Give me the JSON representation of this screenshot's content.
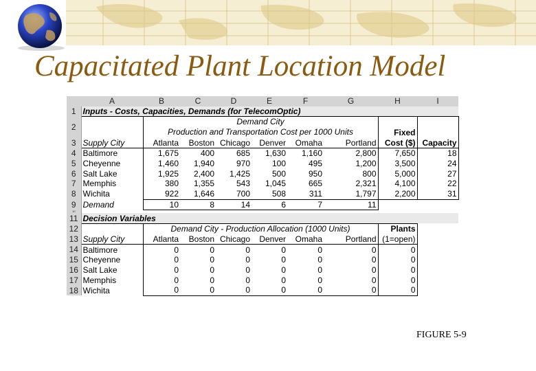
{
  "slide": {
    "title": "Capacitated Plant Location Model",
    "figure_label": "FIGURE 5-9"
  },
  "colors": {
    "title": "#8a5a10",
    "banner": "#f3e9c8",
    "banner_lines": "#dcc98c"
  },
  "sheet": {
    "columns": [
      "A",
      "B",
      "C",
      "D",
      "E",
      "F",
      "G",
      "H",
      "I"
    ],
    "row_numbers": [
      "1",
      "2",
      "3",
      "4",
      "5",
      "6",
      "7",
      "8",
      "9",
      "10",
      "11",
      "12",
      "13",
      "14",
      "15",
      "16",
      "17",
      "18"
    ],
    "inputs_title": "Inputs - Costs, Capacities, Demands (for TelecomOptic)",
    "demand_city": "Demand City",
    "prod_cost_label": "Production and Transportation Cost per 1000 Units",
    "fixed_label": "Fixed",
    "fixed_cost_label": "Cost ($)",
    "capacity_label": "Capacity",
    "supply_city_label": "Supply City",
    "demand_cities": [
      "Atlanta",
      "Boston",
      "Chicago",
      "Denver",
      "Omaha",
      "Portland"
    ],
    "cost_rows": [
      {
        "city": "Baltimore",
        "costs": [
          "1,675",
          "400",
          "685",
          "1,630",
          "1,160",
          "2,800"
        ],
        "fixed": "7,650",
        "capacity": "18"
      },
      {
        "city": "Cheyenne",
        "costs": [
          "1,460",
          "1,940",
          "970",
          "100",
          "495",
          "1,200"
        ],
        "fixed": "3,500",
        "capacity": "24"
      },
      {
        "city": "Salt Lake",
        "costs": [
          "1,925",
          "2,400",
          "1,425",
          "500",
          "950",
          "800"
        ],
        "fixed": "5,000",
        "capacity": "27"
      },
      {
        "city": "Memphis",
        "costs": [
          "380",
          "1,355",
          "543",
          "1,045",
          "665",
          "2,321"
        ],
        "fixed": "4,100",
        "capacity": "22"
      },
      {
        "city": "Wichita",
        "costs": [
          "922",
          "1,646",
          "700",
          "508",
          "311",
          "1,797"
        ],
        "fixed": "2,200",
        "capacity": "31"
      }
    ],
    "demand_label": "Demand",
    "demand_values": [
      "10",
      "8",
      "14",
      "6",
      "7",
      "11"
    ],
    "decision_title": "Decision Variables",
    "allocation_label": "Demand City - Production Allocation (1000 Units)",
    "plants_label": "Plants",
    "open_label": "(1=open)",
    "alloc_rows": [
      {
        "city": "Baltimore",
        "values": [
          "0",
          "0",
          "0",
          "0",
          "0",
          "0"
        ],
        "plant": "0"
      },
      {
        "city": "Cheyenne",
        "values": [
          "0",
          "0",
          "0",
          "0",
          "0",
          "0"
        ],
        "plant": "0"
      },
      {
        "city": "Salt Lake",
        "values": [
          "0",
          "0",
          "0",
          "0",
          "0",
          "0"
        ],
        "plant": "0"
      },
      {
        "city": "Memphis",
        "values": [
          "0",
          "0",
          "0",
          "0",
          "0",
          "0"
        ],
        "plant": "0"
      },
      {
        "city": "Wichita",
        "values": [
          "0",
          "0",
          "0",
          "0",
          "0",
          "0"
        ],
        "plant": "0"
      }
    ]
  }
}
